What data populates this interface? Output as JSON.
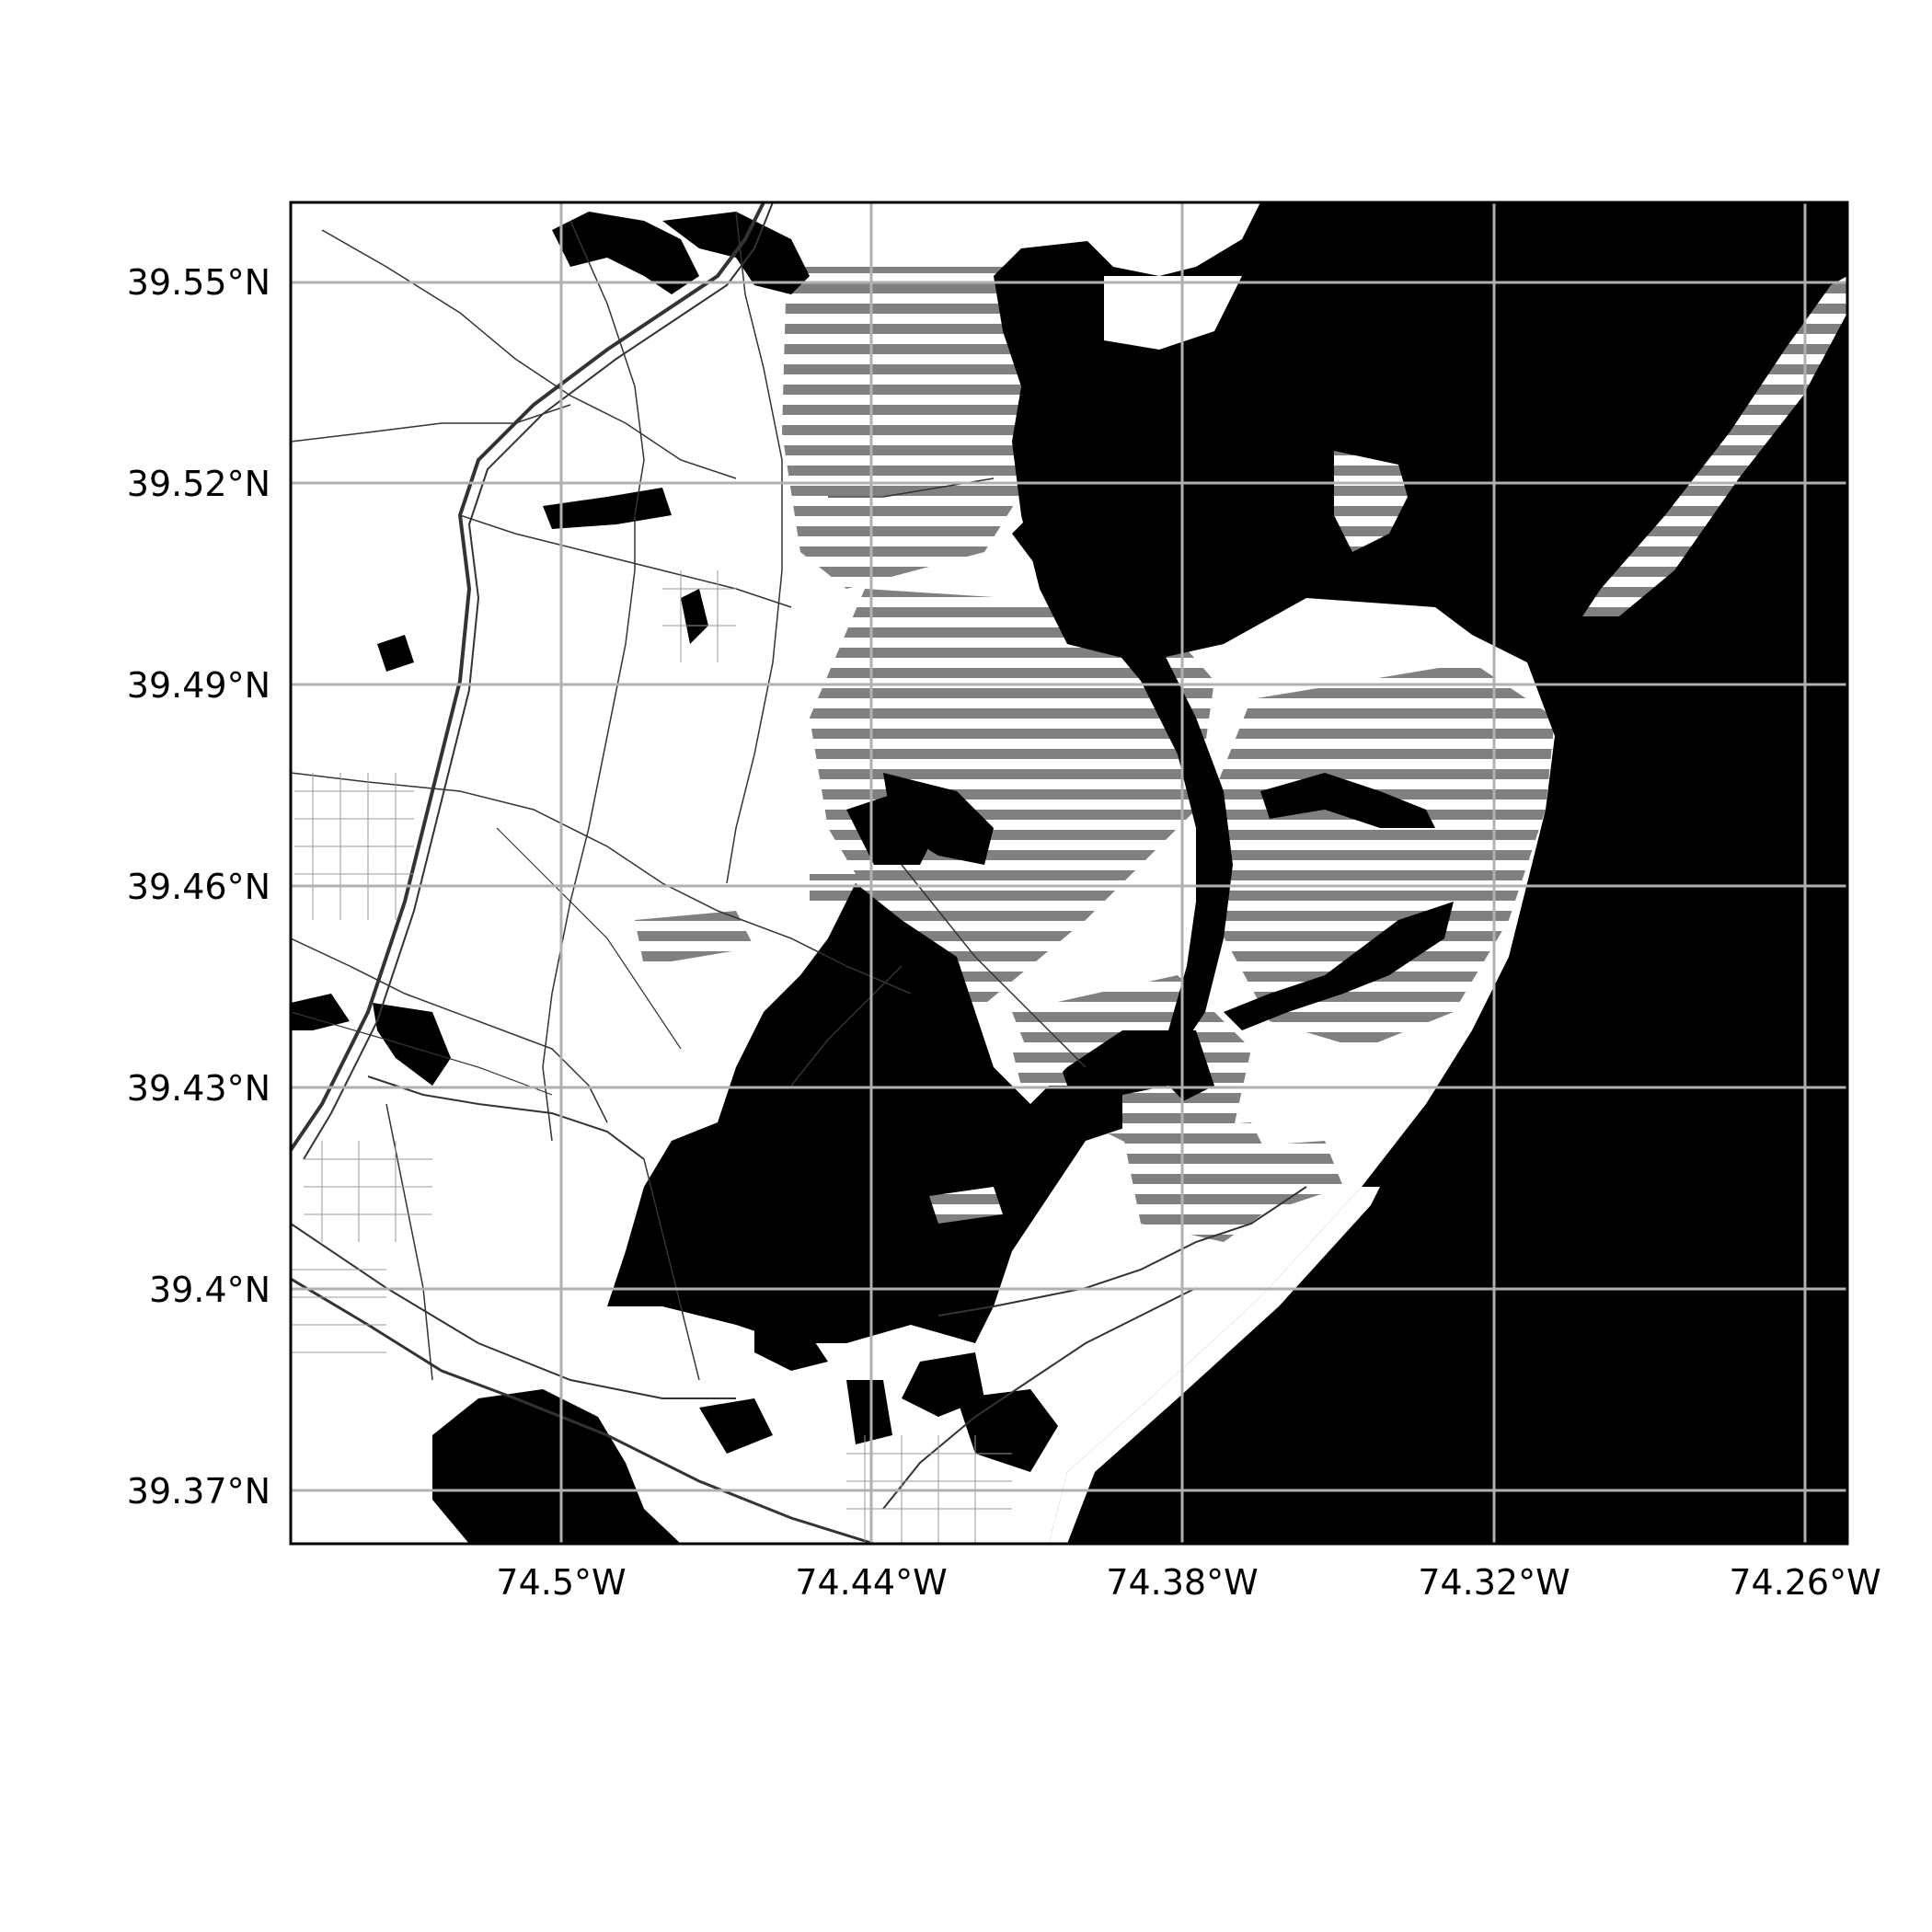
{
  "map": {
    "x_ticks": [
      "74.5°W",
      "74.44°W",
      "74.38°W",
      "74.32°W",
      "74.26°W"
    ],
    "y_ticks": [
      "39.55°N",
      "39.52°N",
      "39.49°N",
      "39.46°N",
      "39.43°N",
      "39.4°N",
      "39.37°N"
    ],
    "grid": true,
    "colors": {
      "water": "#000000",
      "land": "#ffffff",
      "marsh_hatch": "#808080",
      "gridline": "#b0b0b0",
      "frame": "#000000"
    },
    "layers": [
      "water-bodies",
      "marsh-hatching",
      "roads",
      "islands",
      "barrier-island"
    ]
  }
}
